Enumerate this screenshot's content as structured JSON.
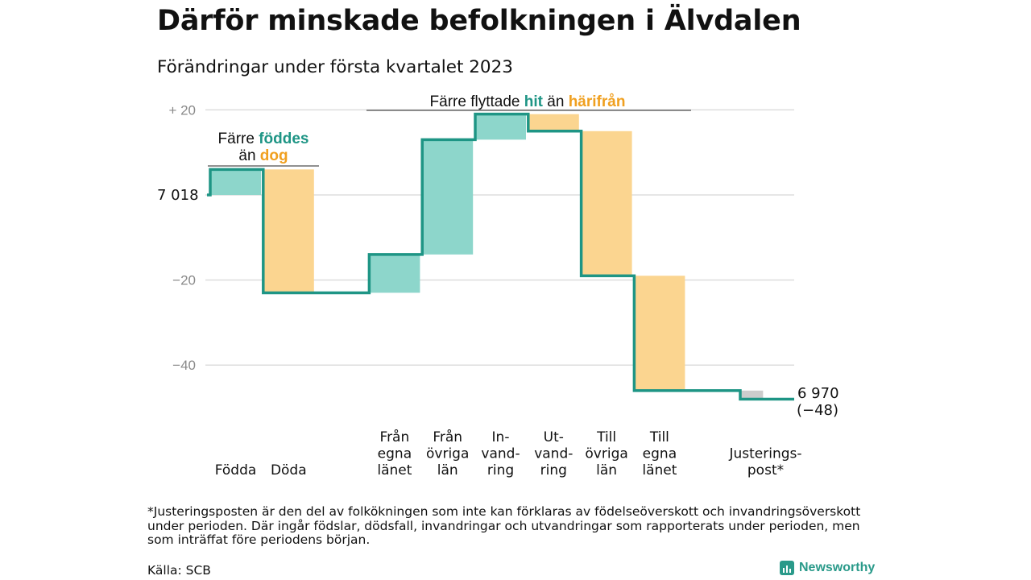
{
  "header": {
    "title": "Därför minskade befolkningen i Älvdalen",
    "subtitle": "Förändringar under första kvartalet 2023"
  },
  "colors": {
    "increase": "#8dd6cb",
    "decrease": "#fbd590",
    "adjustment": "#cccccc",
    "line": "#1e9585",
    "grid": "#dddddd",
    "axis_text": "#8a8a8a"
  },
  "chart_data": {
    "type": "waterfall",
    "start": {
      "label": "7 018",
      "value": 0
    },
    "end": {
      "label": "6 970",
      "change_label": "(−48)",
      "value": -48
    },
    "steps": [
      {
        "label": [
          "Födda"
        ],
        "value": 6,
        "kind": "increase"
      },
      {
        "label": [
          "Döda"
        ],
        "value": -29,
        "kind": "decrease"
      },
      {
        "label": [
          ""
        ],
        "value": 0,
        "kind": "none"
      },
      {
        "label": [
          "Från",
          "egna",
          "länet"
        ],
        "value": 9,
        "kind": "increase"
      },
      {
        "label": [
          "Från",
          "övriga",
          "län"
        ],
        "value": 27,
        "kind": "increase"
      },
      {
        "label": [
          "In-",
          "vand-",
          "ring"
        ],
        "value": 6,
        "kind": "increase"
      },
      {
        "label": [
          "Ut-",
          "vand-",
          "ring"
        ],
        "value": -4,
        "kind": "decrease"
      },
      {
        "label": [
          "Till",
          "övriga",
          "län"
        ],
        "value": -34,
        "kind": "decrease"
      },
      {
        "label": [
          "Till",
          "egna",
          "länet"
        ],
        "value": -27,
        "kind": "decrease"
      },
      {
        "label": [
          ""
        ],
        "value": 0,
        "kind": "none"
      },
      {
        "label": [
          "Justerings-",
          "post*"
        ],
        "value": -2,
        "kind": "adjustment"
      }
    ],
    "ylim": [
      -50,
      20
    ],
    "yticks": [
      {
        "value": 20,
        "label": "+ 20"
      },
      {
        "value": 0,
        "label": ""
      },
      {
        "value": -20,
        "label": "−20"
      },
      {
        "value": -40,
        "label": "−40"
      }
    ],
    "annotations": {
      "births": {
        "line1": "Färre ",
        "highlight1": "föddes",
        "line2": "än ",
        "highlight2": "dog"
      },
      "migration": {
        "text": "Färre flyttade ",
        "highlight1": "hit",
        "middle": " än ",
        "highlight2": "härifrån"
      }
    },
    "grid": true
  },
  "footnote": "*Justeringsposten är den del av folkökningen som inte kan förklaras av födelseöverskott och invandringsöverskott under perioden. Där ingår födslar, dödsfall, invandringar och utvandringar som rapporterats under perioden, men som inträffat före periodens början.",
  "source": "Källa: SCB",
  "brand": "Newsworthy"
}
